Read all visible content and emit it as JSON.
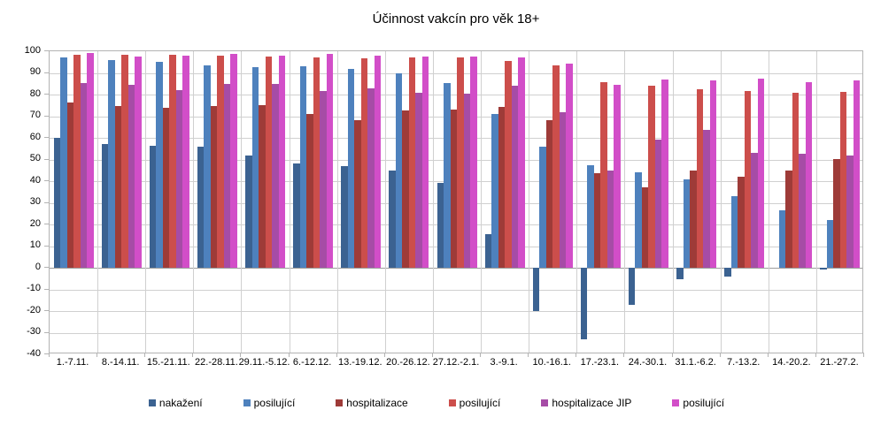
{
  "chart_data": {
    "type": "bar",
    "title": "Účinnost vakcín pro věk 18+",
    "categories": [
      "1.-7.11.",
      "8.-14.11.",
      "15.-21.11.",
      "22.-28.11.",
      "29.11.-5.12.",
      "6.-12.12.",
      "13.-19.12.",
      "20.-26.12.",
      "27.12.-2.1.",
      "3.-9.1.",
      "10.-16.1.",
      "17.-23.1.",
      "24.-30.1.",
      "31.1.-6.2.",
      "7.-13.2.",
      "14.-20.2.",
      "21.-27.2."
    ],
    "series": [
      {
        "name": "nakažení",
        "color": "#3B6291",
        "values": [
          60,
          57,
          56.5,
          56,
          52,
          48,
          47,
          45,
          39,
          15.5,
          -20,
          -33,
          -17,
          -5.5,
          -4,
          0,
          -1
        ]
      },
      {
        "name": "posilující",
        "color": "#4E81BD",
        "values": [
          97,
          96,
          95,
          93.5,
          92.5,
          93,
          92,
          90,
          85.5,
          71,
          56,
          47.5,
          44,
          41,
          33,
          26.5,
          22
        ]
      },
      {
        "name": "hospitalizace",
        "color": "#9E3B38",
        "values": [
          76.5,
          74.5,
          74,
          74.5,
          75.3,
          71,
          68.3,
          72.5,
          73,
          74.4,
          68,
          43.7,
          37,
          45,
          42,
          45,
          50.4
        ]
      },
      {
        "name": "posilující",
        "color": "#CC4E4B",
        "values": [
          98.3,
          98.5,
          98.5,
          98,
          97.5,
          97.3,
          96.8,
          97,
          97,
          95.7,
          93.3,
          85.7,
          84,
          82.3,
          81.6,
          81,
          81.2
        ]
      },
      {
        "name": "hospitalizace JIP",
        "color": "#A64CA6",
        "values": [
          85.5,
          84.5,
          82,
          85,
          84.8,
          81.5,
          82.7,
          81,
          80.5,
          84,
          71.8,
          45,
          59.3,
          63.8,
          53,
          52.5,
          51.8
        ]
      },
      {
        "name": "posilující",
        "color": "#D24EC8",
        "values": [
          99,
          97.4,
          97.8,
          98.7,
          98.1,
          98.8,
          98.1,
          97.4,
          97.4,
          97.1,
          94.2,
          84.4,
          87.1,
          86.4,
          87.4,
          85.7,
          86.4
        ]
      }
    ],
    "ylim": [
      -40,
      100
    ],
    "ytick_step": 10,
    "grid": true,
    "legend_position": "bottom"
  },
  "colors": {
    "background": "#ffffff",
    "gridline": "#d0d0d0",
    "axis_line": "#b3b3b3",
    "zero_line": "#9c9c9c",
    "text": "#000000"
  }
}
